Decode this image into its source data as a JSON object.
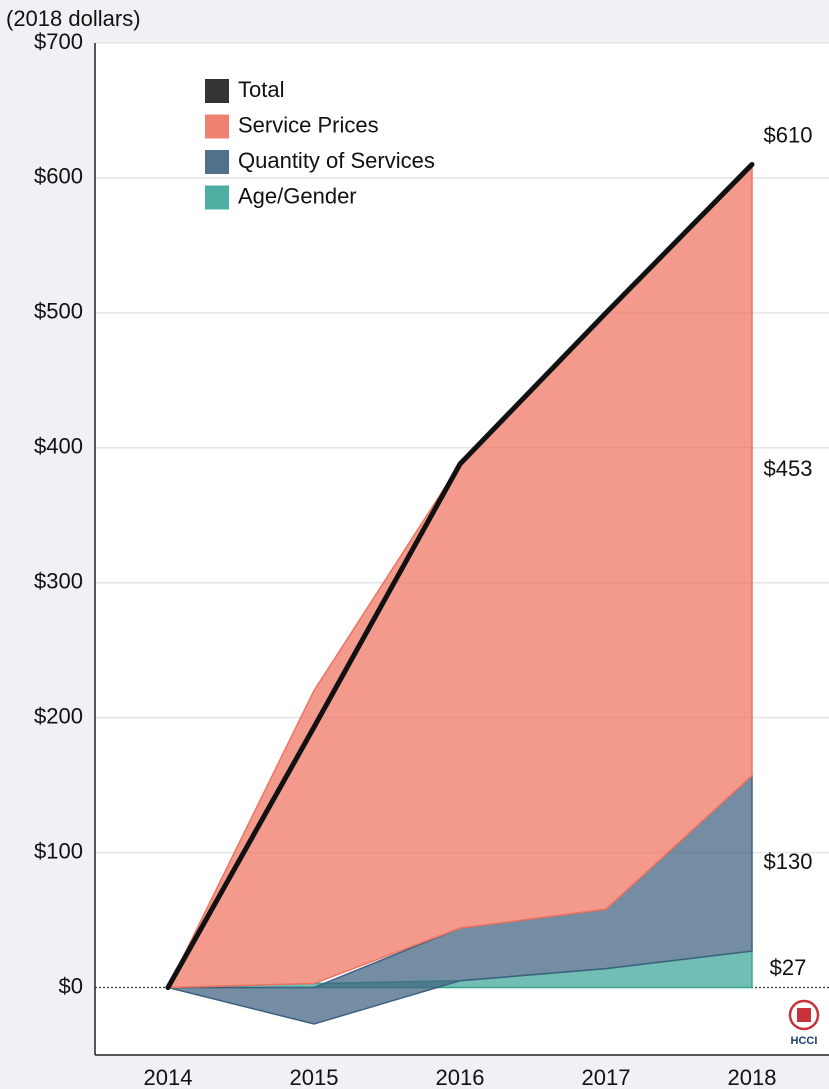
{
  "chart_data": {
    "type": "area",
    "y_axis_label": "(2018 dollars)",
    "categories": [
      "2014",
      "2015",
      "2016",
      "2017",
      "2018"
    ],
    "series": [
      {
        "name": "Total",
        "type": "line",
        "color": "#111111",
        "values": [
          0,
          193,
          388,
          500,
          610
        ],
        "value_labels": [
          null,
          null,
          null,
          null,
          "$610"
        ]
      },
      {
        "name": "Service Prices",
        "type": "area",
        "color": "#ee7361",
        "values": [
          0,
          217,
          344,
          442,
          453
        ],
        "value_labels": [
          null,
          null,
          null,
          null,
          "$453"
        ]
      },
      {
        "name": "Quantity of Services",
        "type": "area",
        "color": "#3e6180",
        "values": [
          0,
          -27,
          39,
          44,
          130
        ],
        "value_labels": [
          null,
          null,
          null,
          null,
          "$130"
        ]
      },
      {
        "name": "Age/Gender",
        "type": "area",
        "color": "#3aa597",
        "values": [
          0,
          3,
          5,
          14,
          27
        ],
        "value_labels": [
          null,
          null,
          null,
          null,
          "$27"
        ]
      }
    ],
    "ylim": [
      -50,
      700
    ],
    "yticks": [
      {
        "value": 0,
        "label": "$0"
      },
      {
        "value": 100,
        "label": "$100"
      },
      {
        "value": 200,
        "label": "$200"
      },
      {
        "value": 300,
        "label": "$300"
      },
      {
        "value": 400,
        "label": "$400"
      },
      {
        "value": 500,
        "label": "$500"
      },
      {
        "value": 600,
        "label": "$600"
      },
      {
        "value": 700,
        "label": "$700"
      }
    ],
    "grid": true,
    "legend": "upper left",
    "logo_text": "HCCI"
  }
}
